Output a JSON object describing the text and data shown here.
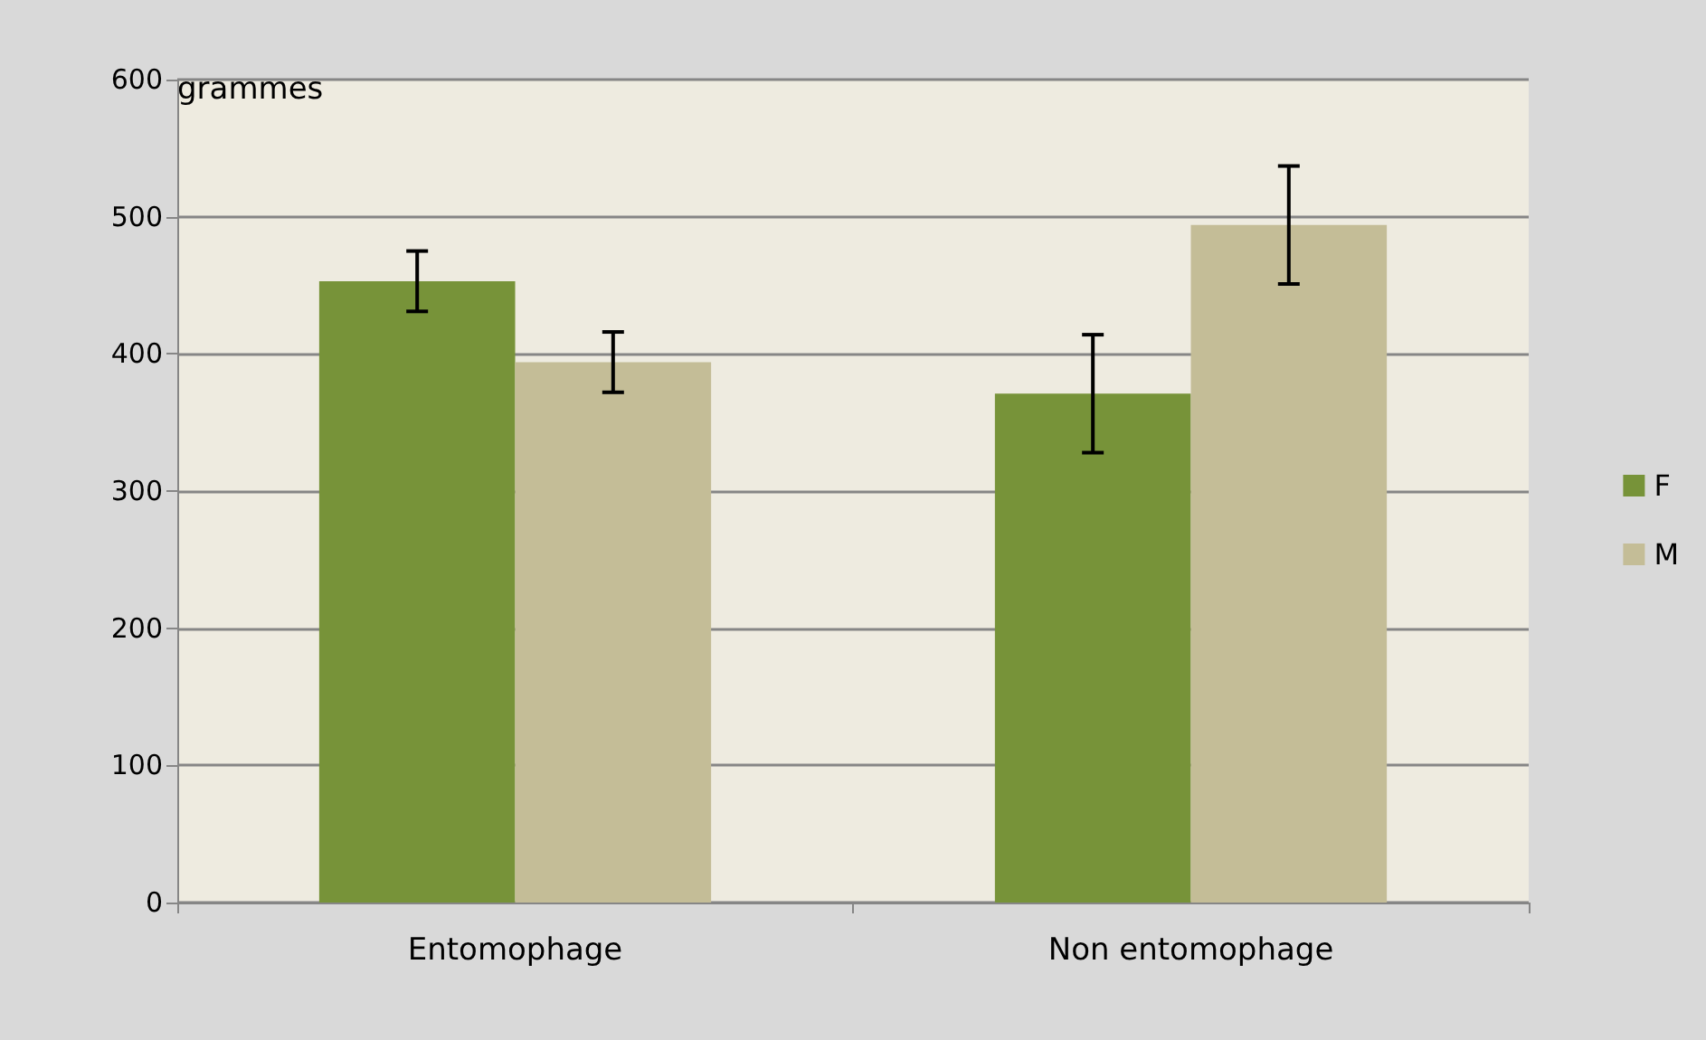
{
  "chart_data": {
    "type": "bar",
    "ylabel": "grammes",
    "categories": [
      "Entomophage",
      "Non entomophage"
    ],
    "series": [
      {
        "name": "F",
        "color": "#779339",
        "values": [
          453,
          371
        ],
        "errors": [
          22,
          43
        ]
      },
      {
        "name": "M",
        "color": "#c4bd97",
        "values": [
          394,
          494
        ],
        "errors": [
          22,
          43
        ]
      }
    ],
    "ylim": [
      0,
      600
    ],
    "yticks": [
      0,
      100,
      200,
      300,
      400,
      500,
      600
    ],
    "grid": "y",
    "legend": "right"
  }
}
